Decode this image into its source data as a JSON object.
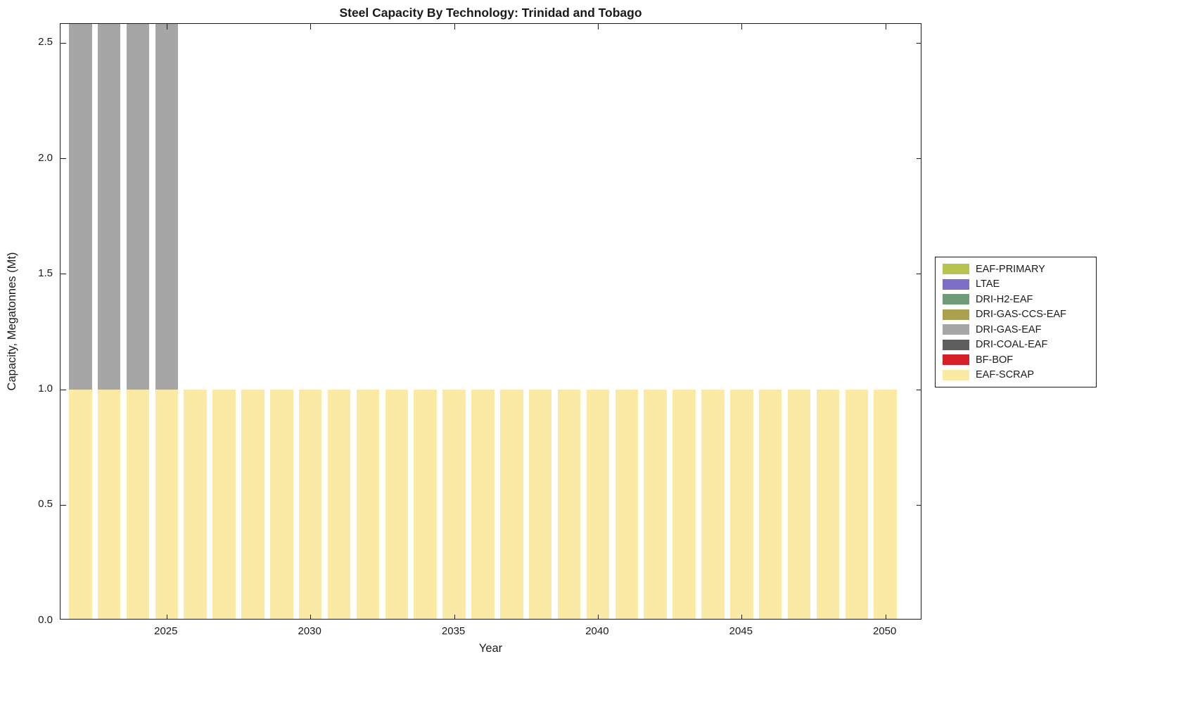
{
  "chart_data": {
    "type": "bar",
    "stacked": true,
    "title": "Steel Capacity By Technology: Trinidad and Tobago",
    "xlabel": "Year",
    "ylabel": "Capacity, Megatonnes (Mt)",
    "xlim": [
      2021.31,
      2051.28
    ],
    "ylim": [
      0,
      2.582
    ],
    "bar_width_years": 0.8,
    "grid": false,
    "xticks": [
      2025,
      2030,
      2035,
      2040,
      2045,
      2050
    ],
    "xtick_labels": [
      "2025",
      "2030",
      "2035",
      "2040",
      "2045",
      "2050"
    ],
    "yticks": [
      0,
      0.5,
      1.0,
      1.5,
      2.0,
      2.5
    ],
    "ytick_labels": [
      "0.0",
      "0.5",
      "1.0",
      "1.5",
      "2.0",
      "2.5"
    ],
    "years": [
      2022,
      2023,
      2024,
      2025,
      2026,
      2027,
      2028,
      2029,
      2030,
      2031,
      2032,
      2033,
      2034,
      2035,
      2036,
      2037,
      2038,
      2039,
      2040,
      2041,
      2042,
      2043,
      2044,
      2045,
      2046,
      2047,
      2048,
      2049,
      2050
    ],
    "series": [
      {
        "name": "EAF-SCRAP",
        "color": "#FBE9A6",
        "values": [
          1,
          1,
          1,
          1,
          1,
          1,
          1,
          1,
          1,
          1,
          1,
          1,
          1,
          1,
          1,
          1,
          1,
          1,
          1,
          1,
          1,
          1,
          1,
          1,
          1,
          1,
          1,
          1,
          1
        ]
      },
      {
        "name": "DRI-GAS-EAF",
        "color": "#A6A6A6",
        "values": [
          1.6,
          1.6,
          1.6,
          1.6,
          0,
          0,
          0,
          0,
          0,
          0,
          0,
          0,
          0,
          0,
          0,
          0,
          0,
          0,
          0,
          0,
          0,
          0,
          0,
          0,
          0,
          0,
          0,
          0,
          0
        ],
        "note": "segments for 2022-2025 extend past the top of the y-axis (visually clipped at the plot border)"
      }
    ],
    "legend": {
      "position": "right-outside",
      "entries": [
        {
          "label": "EAF-PRIMARY",
          "color": "#B8C44F"
        },
        {
          "label": "LTAE",
          "color": "#7B70C6"
        },
        {
          "label": "DRI-H2-EAF",
          "color": "#6F9C78"
        },
        {
          "label": "DRI-GAS-CCS-EAF",
          "color": "#A9A14E"
        },
        {
          "label": "DRI-GAS-EAF",
          "color": "#A6A6A6"
        },
        {
          "label": "DRI-COAL-EAF",
          "color": "#5E5E5E"
        },
        {
          "label": "BF-BOF",
          "color": "#D62027"
        },
        {
          "label": "EAF-SCRAP",
          "color": "#FBE9A6"
        }
      ]
    }
  }
}
